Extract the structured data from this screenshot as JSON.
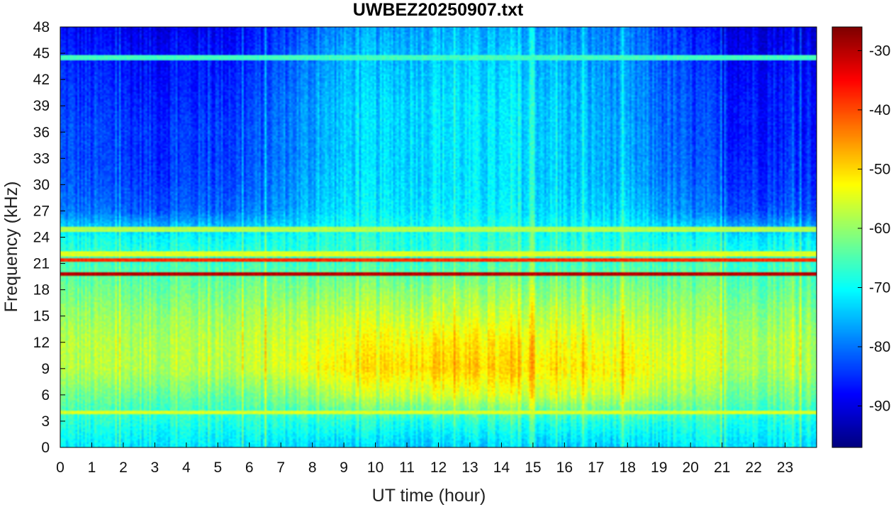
{
  "chart_data": {
    "type": "heatmap",
    "title": "UWBEZ20250907.txt",
    "xlabel": "UT time (hour)",
    "ylabel": "Frequency (kHz)",
    "xlim": [
      0,
      24
    ],
    "ylim": [
      0,
      48
    ],
    "x_ticks": [
      "0",
      "1",
      "2",
      "3",
      "4",
      "5",
      "6",
      "7",
      "8",
      "9",
      "10",
      "11",
      "12",
      "13",
      "14",
      "15",
      "16",
      "17",
      "18",
      "19",
      "20",
      "21",
      "22",
      "23"
    ],
    "y_ticks": [
      "0",
      "3",
      "6",
      "9",
      "12",
      "15",
      "18",
      "21",
      "24",
      "27",
      "30",
      "33",
      "36",
      "39",
      "42",
      "45",
      "48"
    ],
    "colorbar": {
      "colormap": "jet",
      "range": [
        -97,
        -26
      ],
      "ticks": [
        "-90",
        "-80",
        "-70",
        "-60",
        "-50",
        "-40",
        "-30"
      ]
    },
    "estimated_levels_db": {
      "frequency_khz": [
        0,
        3,
        6,
        9,
        12,
        15,
        18,
        21,
        24,
        27,
        30,
        33,
        36,
        39,
        42,
        45,
        48
      ],
      "by_hour": {
        "0": [
          -72,
          -68,
          -63,
          -58,
          -58,
          -60,
          -63,
          -66,
          -70,
          -80,
          -82,
          -83,
          -83,
          -84,
          -85,
          -86,
          -88
        ],
        "3": [
          -72,
          -68,
          -63,
          -58,
          -58,
          -60,
          -63,
          -66,
          -70,
          -82,
          -84,
          -85,
          -85,
          -86,
          -87,
          -88,
          -90
        ],
        "6": [
          -72,
          -68,
          -63,
          -57,
          -57,
          -59,
          -62,
          -66,
          -70,
          -80,
          -82,
          -83,
          -83,
          -84,
          -85,
          -86,
          -88
        ],
        "9": [
          -74,
          -68,
          -58,
          -52,
          -54,
          -57,
          -61,
          -66,
          -68,
          -72,
          -73,
          -74,
          -74,
          -74,
          -75,
          -76,
          -78
        ],
        "12": [
          -74,
          -68,
          -55,
          -49,
          -51,
          -56,
          -60,
          -66,
          -68,
          -71,
          -72,
          -72,
          -72,
          -72,
          -73,
          -74,
          -76
        ],
        "15": [
          -74,
          -68,
          -56,
          -51,
          -53,
          -57,
          -61,
          -66,
          -68,
          -72,
          -73,
          -73,
          -73,
          -73,
          -74,
          -75,
          -77
        ],
        "18": [
          -74,
          -68,
          -57,
          -53,
          -55,
          -58,
          -62,
          -66,
          -69,
          -74,
          -76,
          -77,
          -77,
          -78,
          -78,
          -79,
          -80
        ],
        "21": [
          -72,
          -68,
          -62,
          -58,
          -58,
          -60,
          -63,
          -66,
          -71,
          -82,
          -84,
          -85,
          -86,
          -86,
          -87,
          -88,
          -90
        ]
      },
      "narrowband_lines": [
        {
          "frequency_khz": 19.8,
          "level_db": -30
        },
        {
          "frequency_khz": 21.4,
          "level_db": -38
        },
        {
          "frequency_khz": 22.1,
          "level_db": -55
        },
        {
          "frequency_khz": 24.9,
          "level_db": -58
        },
        {
          "frequency_khz": 4.0,
          "level_db": -55
        },
        {
          "frequency_khz": 44.5,
          "level_db": -66
        }
      ]
    }
  }
}
